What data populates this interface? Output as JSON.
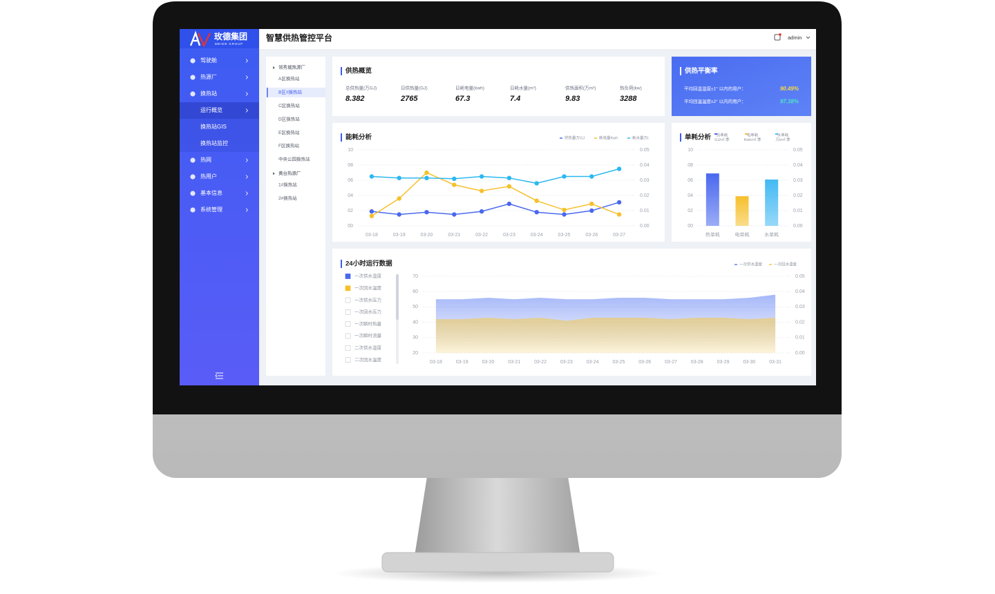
{
  "brand": {
    "name": "玫德集团",
    "sub": "MEIDE GROUP"
  },
  "header": {
    "title": "智慧供热管控平台",
    "user": "admin"
  },
  "menu": [
    {
      "label": "驾驶舱"
    },
    {
      "label": "热源厂"
    },
    {
      "label": "换热站",
      "children": [
        "运行概览",
        "换热站GIS",
        "换热站监控"
      ]
    },
    {
      "label": "热网"
    },
    {
      "label": "热用户"
    },
    {
      "label": "基本信息"
    },
    {
      "label": "系统管理"
    }
  ],
  "tree": [
    {
      "label": "领秀城热源厂",
      "children": [
        "A区换热站",
        "B区#换热站",
        "C区换热站",
        "D区换热站",
        "E区换热站",
        "F区换热站",
        "中央公园换热站"
      ]
    },
    {
      "label": "黄台热源厂",
      "children": [
        "1#换热站",
        "2#换热站"
      ]
    }
  ],
  "overview": {
    "title": "供热概览",
    "metrics": [
      {
        "label": "总供热量(万GJ)",
        "value": 8.382
      },
      {
        "label": "日供热量(GJ)",
        "value": 2765
      },
      {
        "label": "日耗电量(kwh)",
        "value": 67.3
      },
      {
        "label": "日耗水量(m³)",
        "value": 7.4
      },
      {
        "label": "供热面积(万m²)",
        "value": 9.83
      },
      {
        "label": "热负荷(kw)",
        "value": 3288
      }
    ]
  },
  "balance": {
    "title": "供热平衡率",
    "rows": [
      {
        "label": "平均回温温度±1° 以内的用户：",
        "value": "90.49%"
      },
      {
        "label": "平均回温温度±2° 以内的用户：",
        "value": "97.38%"
      }
    ]
  },
  "chart_data": [
    {
      "type": "line",
      "title": "能耗分析",
      "categories": [
        "03-18",
        "03-19",
        "03-20",
        "03-21",
        "03-22",
        "03-23",
        "03-24",
        "03-25",
        "03-26",
        "03-27"
      ],
      "series": [
        {
          "name": "供热量万GJ",
          "color": "#4a68ee",
          "values": [
            1.9,
            1.5,
            1.8,
            1.5,
            1.9,
            2.9,
            1.8,
            1.5,
            2.0,
            3.1
          ]
        },
        {
          "name": "耗电量Kwh",
          "color": "#f6c02c",
          "values": [
            1.3,
            3.6,
            7.0,
            5.4,
            4.6,
            5.2,
            3.3,
            2.1,
            2.9,
            1.5
          ]
        },
        {
          "name": "耗水量万t",
          "color": "#2cb8f0",
          "values": [
            6.5,
            6.3,
            6.3,
            6.2,
            6.5,
            6.3,
            5.6,
            6.5,
            6.5,
            7.5
          ]
        }
      ],
      "ylim": [
        0,
        10
      ],
      "yticks": [
        {
          "value": 0,
          "label": "00"
        },
        {
          "value": 2,
          "label": "02"
        },
        {
          "value": 4,
          "label": "04"
        },
        {
          "value": 6,
          "label": "06"
        },
        {
          "value": 8,
          "label": "08"
        },
        10
      ],
      "y2lim": [
        0,
        0.05
      ],
      "y2ticks": [
        {
          "value": 0,
          "label": "0.00"
        },
        0.01,
        0.02,
        0.03,
        0.04,
        0.05
      ],
      "grid": true
    },
    {
      "type": "bar",
      "title": "单耗分析",
      "categories": [
        "热单耗",
        "电单耗",
        "水单耗"
      ],
      "values": [
        6.9,
        3.9,
        6.1
      ],
      "colors": [
        "#4a68ee",
        "#f6c02c",
        "#43b9f3"
      ],
      "legend": [
        {
          "name": "热单耗",
          "unit": "GJ/㎡·季"
        },
        {
          "name": "电单耗",
          "unit": "Kwh/㎡·季"
        },
        {
          "name": "水单耗",
          "unit": "万t/㎡·季"
        }
      ],
      "ylim": [
        0,
        10
      ],
      "yticks": [
        {
          "value": 0,
          "label": "00"
        },
        {
          "value": 2,
          "label": "02"
        },
        {
          "value": 4,
          "label": "04"
        },
        {
          "value": 6,
          "label": "06"
        },
        {
          "value": 8,
          "label": "08"
        },
        10
      ],
      "y2lim": [
        0,
        0.05
      ],
      "y2ticks": [
        {
          "value": 0,
          "label": "0.00"
        },
        0.01,
        0.02,
        0.03,
        0.04,
        0.05
      ],
      "grid": true
    },
    {
      "type": "area",
      "title": "24小时运行数据",
      "categories": [
        "03-18",
        "03-19",
        "03-20",
        "03-21",
        "03-22",
        "03-23",
        "03-24",
        "03-25",
        "03-26",
        "03-27",
        "03-28",
        "03-29",
        "03-30",
        "03-31"
      ],
      "series": [
        {
          "name": "一次供水温度",
          "color": "#5b7cf3",
          "values": [
            55,
            55,
            56,
            55,
            56,
            55,
            55,
            56,
            56,
            55,
            55,
            55,
            56,
            58
          ]
        },
        {
          "name": "一次回水温度",
          "color": "#f5c743",
          "values": [
            42,
            42,
            43,
            42,
            43,
            41,
            43,
            43,
            43,
            42,
            43,
            43,
            42,
            43
          ]
        }
      ],
      "signals": [
        {
          "name": "一次供水温度",
          "checked": true,
          "color": "#4a68ee"
        },
        {
          "name": "一次回水温度",
          "checked": true,
          "color": "#f6c02c"
        },
        {
          "name": "一次供水压力",
          "checked": false
        },
        {
          "name": "一次回水压力",
          "checked": false
        },
        {
          "name": "一次瞬时热量",
          "checked": false
        },
        {
          "name": "一次瞬时流量",
          "checked": false
        },
        {
          "name": "二次供水温度",
          "checked": false
        },
        {
          "name": "二次回水温度",
          "checked": false
        }
      ],
      "ylim": [
        20,
        70
      ],
      "yticks": [
        20,
        30,
        40,
        50,
        60,
        70
      ],
      "y2lim": [
        0,
        0.05
      ],
      "y2ticks": [
        {
          "value": 0,
          "label": "0.00"
        },
        0.01,
        0.02,
        0.03,
        0.04,
        0.05
      ],
      "grid": true
    }
  ]
}
